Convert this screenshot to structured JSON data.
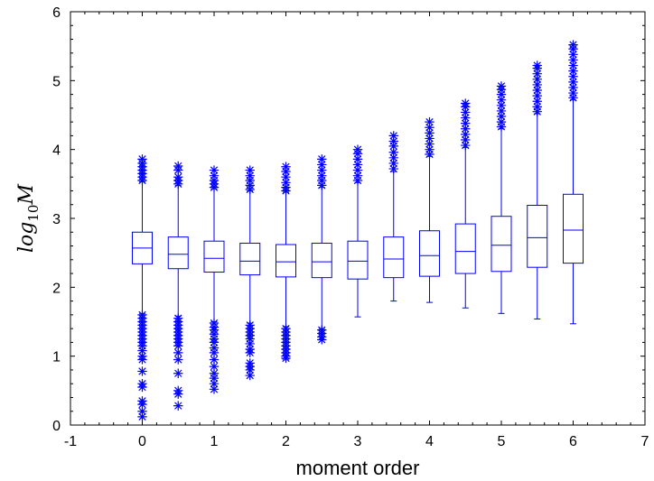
{
  "chart_data": {
    "type": "box",
    "title": "",
    "xlabel": "moment order",
    "ylabel": {
      "main": "log",
      "subscript": "10",
      "suffix": "M"
    },
    "xlim": [
      -1,
      7
    ],
    "ylim": [
      0,
      6
    ],
    "xticks": [
      "-1",
      "0",
      "1",
      "2",
      "3",
      "4",
      "5",
      "6",
      "7"
    ],
    "yticks": [
      "0",
      "1",
      "2",
      "3",
      "4",
      "5",
      "6"
    ],
    "grid": false,
    "color": "#0000ff",
    "boxes": [
      {
        "x": 0.0,
        "whisker_low": 1.62,
        "q1": 2.34,
        "median": 2.57,
        "q3": 2.8,
        "whisker_high": 3.53,
        "outliers_low": [
          1.6,
          1.55,
          1.5,
          1.45,
          1.4,
          1.35,
          1.3,
          1.25,
          1.2,
          1.15,
          1.08,
          1.0,
          0.95,
          0.78,
          0.6,
          0.55,
          0.35,
          0.3,
          0.2,
          0.12
        ],
        "outliers_high": [
          3.55,
          3.6,
          3.65,
          3.7,
          3.75,
          3.8,
          3.86
        ]
      },
      {
        "x": 0.5,
        "whisker_low": 1.58,
        "q1": 2.27,
        "median": 2.48,
        "q3": 2.73,
        "whisker_high": 3.48,
        "outliers_low": [
          1.55,
          1.5,
          1.45,
          1.4,
          1.35,
          1.3,
          1.25,
          1.2,
          1.15,
          1.05,
          0.95,
          0.75,
          0.5,
          0.45,
          0.28
        ],
        "outliers_high": [
          3.5,
          3.55,
          3.6,
          3.7,
          3.76
        ]
      },
      {
        "x": 1.0,
        "whisker_low": 1.5,
        "q1": 2.22,
        "median": 2.42,
        "q3": 2.67,
        "whisker_high": 3.43,
        "outliers_low": [
          1.48,
          1.42,
          1.38,
          1.32,
          1.25,
          1.2,
          1.12,
          1.05,
          0.95,
          0.85,
          0.75,
          0.68,
          0.6,
          0.52
        ],
        "outliers_high": [
          3.45,
          3.5,
          3.55,
          3.62,
          3.7
        ]
      },
      {
        "x": 1.5,
        "whisker_low": 1.48,
        "q1": 2.18,
        "median": 2.38,
        "q3": 2.64,
        "whisker_high": 3.4,
        "outliers_low": [
          1.45,
          1.4,
          1.35,
          1.3,
          1.25,
          1.18,
          1.1,
          1.05,
          0.9,
          0.85,
          0.8,
          0.72
        ],
        "outliers_high": [
          3.42,
          3.48,
          3.55,
          3.62,
          3.7
        ]
      },
      {
        "x": 2.0,
        "whisker_low": 1.43,
        "q1": 2.15,
        "median": 2.37,
        "q3": 2.62,
        "whisker_high": 3.38,
        "outliers_low": [
          1.4,
          1.35,
          1.3,
          1.25,
          1.2,
          1.15,
          1.1,
          1.05,
          1.0,
          0.97
        ],
        "outliers_high": [
          3.4,
          3.45,
          3.52,
          3.6,
          3.68,
          3.75
        ]
      },
      {
        "x": 2.5,
        "whisker_low": 1.4,
        "q1": 2.14,
        "median": 2.37,
        "q3": 2.64,
        "whisker_high": 3.45,
        "outliers_low": [
          1.38,
          1.33,
          1.28,
          1.24
        ],
        "outliers_high": [
          3.48,
          3.55,
          3.62,
          3.7,
          3.78,
          3.86
        ]
      },
      {
        "x": 3.0,
        "whisker_low": 1.57,
        "q1": 2.12,
        "median": 2.38,
        "q3": 2.67,
        "whisker_high": 3.52,
        "outliers_low": [],
        "outliers_high": [
          3.55,
          3.62,
          3.7,
          3.78,
          3.86,
          3.94,
          4.0
        ]
      },
      {
        "x": 3.5,
        "whisker_low": 1.8,
        "q1": 2.14,
        "median": 2.41,
        "q3": 2.73,
        "whisker_high": 3.68,
        "outliers_low": [],
        "outliers_high": [
          3.72,
          3.8,
          3.88,
          3.96,
          4.05,
          4.12,
          4.2
        ]
      },
      {
        "x": 4.0,
        "whisker_low": 1.78,
        "q1": 2.16,
        "median": 2.46,
        "q3": 2.82,
        "whisker_high": 3.9,
        "outliers_low": [],
        "outliers_high": [
          3.93,
          4.0,
          4.08,
          4.16,
          4.24,
          4.32,
          4.4
        ]
      },
      {
        "x": 4.5,
        "whisker_low": 1.7,
        "q1": 2.2,
        "median": 2.52,
        "q3": 2.92,
        "whisker_high": 4.03,
        "outliers_low": [],
        "outliers_high": [
          4.06,
          4.14,
          4.22,
          4.3,
          4.38,
          4.46,
          4.54,
          4.62,
          4.67
        ]
      },
      {
        "x": 5.0,
        "whisker_low": 1.62,
        "q1": 2.23,
        "median": 2.61,
        "q3": 3.03,
        "whisker_high": 4.3,
        "outliers_low": [],
        "outliers_high": [
          4.33,
          4.4,
          4.48,
          4.56,
          4.64,
          4.72,
          4.8,
          4.87,
          4.92
        ]
      },
      {
        "x": 5.5,
        "whisker_low": 1.54,
        "q1": 2.29,
        "median": 2.72,
        "q3": 3.19,
        "whisker_high": 4.52,
        "outliers_low": [],
        "outliers_high": [
          4.55,
          4.62,
          4.7,
          4.78,
          4.86,
          4.94,
          5.02,
          5.1,
          5.18,
          5.22
        ]
      },
      {
        "x": 6.0,
        "whisker_low": 1.47,
        "q1": 2.35,
        "median": 2.83,
        "q3": 3.35,
        "whisker_high": 4.72,
        "outliers_low": [],
        "outliers_high": [
          4.75,
          4.82,
          4.9,
          4.98,
          5.06,
          5.14,
          5.22,
          5.3,
          5.38,
          5.46,
          5.52
        ]
      }
    ]
  }
}
